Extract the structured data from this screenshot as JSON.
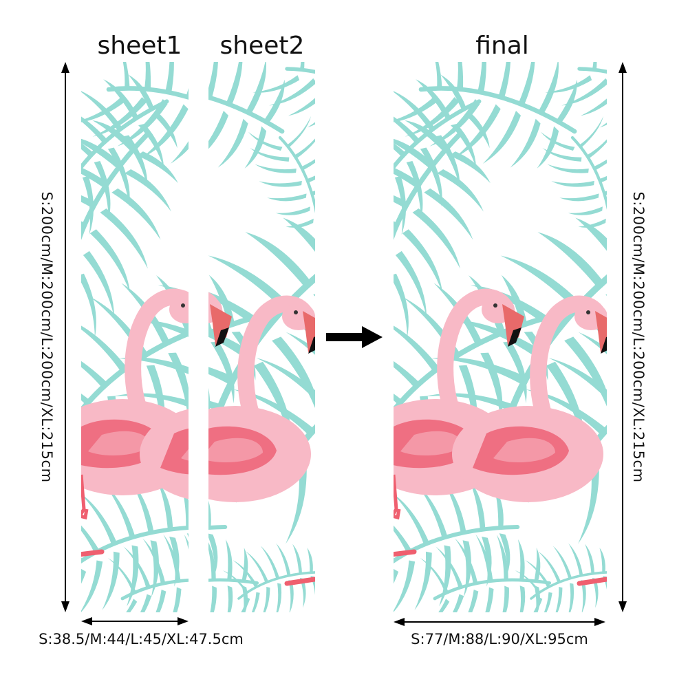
{
  "titles": {
    "sheet1": "sheet1",
    "sheet2": "sheet2",
    "final": "final"
  },
  "height_label": "S:200cm/M:200cm/L:200cm/XL:215cm",
  "sheet_width_label": "S:38.5/M:44/L:45/XL:47.5cm",
  "final_width_label": "S:77/M:88/L:90/XL:95cm",
  "icons": {
    "height_arrow": "double-headed-vertical-arrow",
    "width_arrow": "double-headed-horizontal-arrow",
    "combine_arrow": "right-arrow"
  },
  "colors": {
    "leaf": "#94dbd3",
    "flamingo_body": "#f8b9c6",
    "flamingo_wing": "#ef6f82",
    "beak": "#e86a6a",
    "beak_tip": "#111111",
    "leg": "#ef5f6f",
    "arrow": "#000000"
  }
}
